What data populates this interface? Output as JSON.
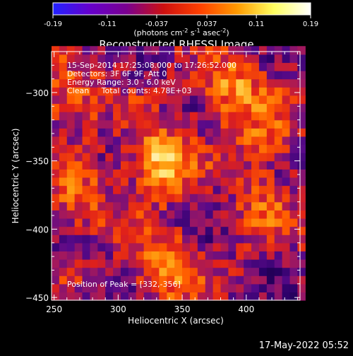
{
  "chart_data": {
    "type": "heatmap",
    "title": "Reconstructed RHESSI Image",
    "xlabel": "Heliocentric X (arcsec)",
    "ylabel": "Heliocentric Y (arcsec)",
    "xlim": [
      248,
      442
    ],
    "ylim": [
      -452,
      -270
    ],
    "x_ticks": [
      250,
      300,
      350,
      400
    ],
    "y_ticks": [
      -300,
      -350,
      -400,
      -450
    ],
    "colorbar": {
      "range": [
        -0.19,
        0.19
      ],
      "ticks": [
        "-0.19",
        "-0.11",
        "-0.037",
        "0.037",
        "0.11",
        "0.19"
      ],
      "unit_text": "(photons cm",
      "unit_exp1": "-2",
      "unit_mid": " s",
      "unit_exp2": "-1",
      "unit_mid2": " asec",
      "unit_exp3": "-2",
      "unit_end": ")",
      "colors": [
        "#2222ff",
        "#6600cc",
        "#7a0090",
        "#cc1010",
        "#ff4000",
        "#ff9a00",
        "#ffff60",
        "#ffffff"
      ]
    },
    "annotations": {
      "line1": "15-Sep-2014 17:25:08.000 to 17:26:52.000",
      "line2": "Detectors: 3F 6F 9F, Att 0",
      "line3": "Energy Range: 3.0 - 6.0 keV",
      "line4": "Clean     Total counts: 4.78E+03",
      "peak": "Position of Peak = [332,-356]"
    },
    "sources": [
      {
        "x": 332,
        "y": -350,
        "intensity": 0.19
      },
      {
        "x": 388,
        "y": -297,
        "intensity": 0.14
      },
      {
        "x": 336,
        "y": -428,
        "intensity": 0.15
      },
      {
        "x": 262,
        "y": -303,
        "intensity": 0.11
      },
      {
        "x": 268,
        "y": -378,
        "intensity": 0.1
      },
      {
        "x": 415,
        "y": -335,
        "intensity": 0.09
      },
      {
        "x": 412,
        "y": -385,
        "intensity": 0.08
      }
    ],
    "grid": false
  },
  "footer": {
    "date": "17-May-2022 05:52"
  }
}
